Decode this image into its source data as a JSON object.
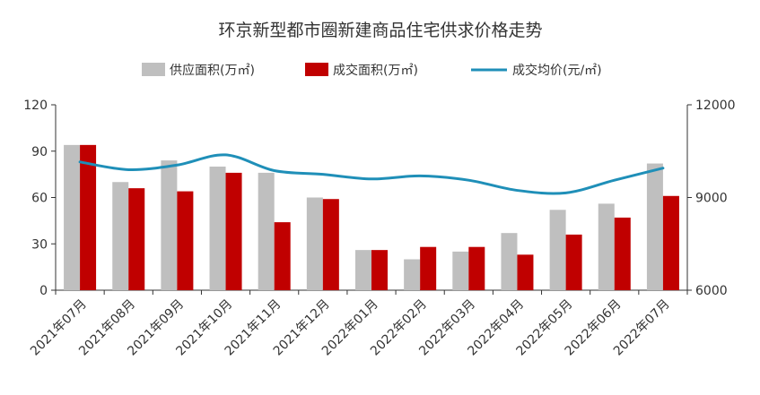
{
  "chart_data": {
    "type": "bar",
    "title": "环京新型都市圈新建商品住宅供求价格走势",
    "categories": [
      "2021年07月",
      "2021年08月",
      "2021年09月",
      "2021年10月",
      "2021年11月",
      "2021年12月",
      "2022年01月",
      "2022年02月",
      "2022年03月",
      "2022年04月",
      "2022年05月",
      "2022年06月",
      "2022年07月"
    ],
    "series": [
      {
        "name": "供应面积(万㎡)",
        "kind": "bar",
        "axis": "left",
        "color": "#bfbfbf",
        "values": [
          94,
          70,
          84,
          80,
          76,
          60,
          26,
          20,
          25,
          37,
          52,
          56,
          82
        ]
      },
      {
        "name": "成交面积(万㎡)",
        "kind": "bar",
        "axis": "left",
        "color": "#c00000",
        "values": [
          94,
          66,
          64,
          76,
          44,
          59,
          26,
          28,
          28,
          23,
          36,
          47,
          61
        ]
      },
      {
        "name": "成交均价(元/㎡)",
        "kind": "line",
        "axis": "right",
        "color": "#1f8fb8",
        "values": [
          10150,
          9900,
          10050,
          10380,
          9870,
          9750,
          9600,
          9700,
          9560,
          9230,
          9150,
          9560,
          9950
        ]
      }
    ],
    "y_left": {
      "min": 0,
      "max": 120,
      "ticks": [
        "0",
        "30",
        "60",
        "90",
        "120"
      ]
    },
    "y_right": {
      "min": 6000,
      "max": 12000,
      "ticks": [
        "6000",
        "9000",
        "12000"
      ]
    },
    "legend_position": "top-center",
    "grid": false
  }
}
